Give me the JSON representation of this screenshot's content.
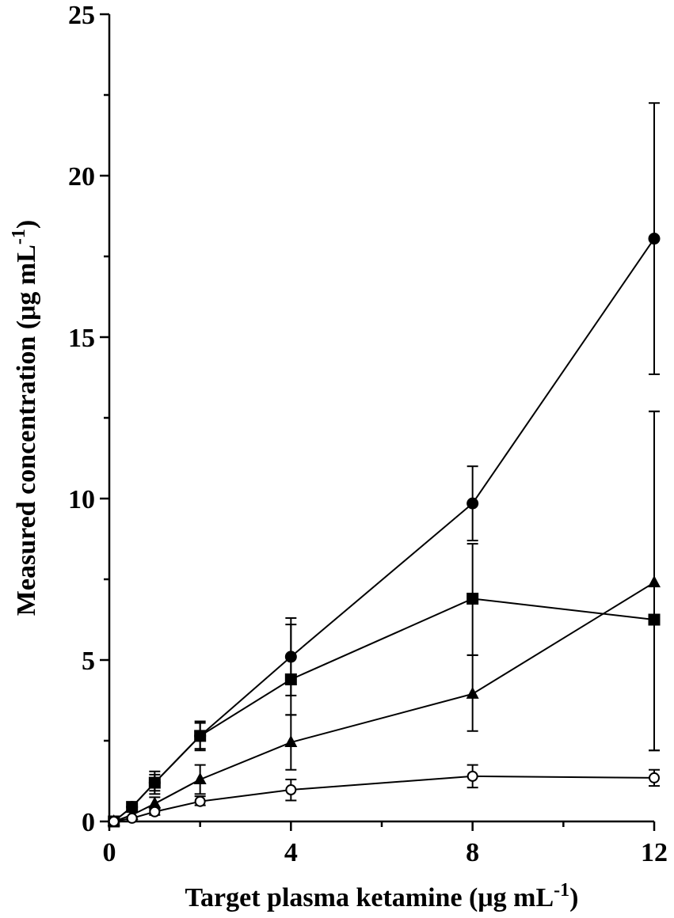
{
  "chart_data": {
    "type": "line",
    "xlabel": "Target plasma ketamine (μg mL",
    "xlabel_sup": "-1",
    "xlabel_end": ")",
    "ylabel": "Measured concentration (μg mL",
    "ylabel_sup": "-1",
    "ylabel_end": ")",
    "xlim": [
      0,
      12
    ],
    "ylim": [
      0,
      25
    ],
    "x_ticks": [
      0,
      4,
      8,
      12
    ],
    "x_tick_labels": [
      "0",
      "4",
      "8",
      "12"
    ],
    "x_minor_ticks": [
      2,
      6,
      10
    ],
    "y_ticks": [
      0,
      5,
      10,
      15,
      20,
      25
    ],
    "y_tick_labels": [
      "0",
      "5",
      "10",
      "15",
      "20",
      "25"
    ],
    "y_minor_ticks": [
      2.5,
      7.5,
      12.5,
      17.5,
      22.5
    ],
    "grid": false,
    "legend": "none",
    "x": [
      0.1,
      0.5,
      1,
      2,
      4,
      8,
      12
    ],
    "series": [
      {
        "marker": "filled-circle",
        "values": [
          0,
          0.45,
          1.2,
          2.65,
          5.1,
          9.85,
          18.05
        ],
        "err_hi": [
          null,
          0.6,
          1.55,
          3.1,
          6.3,
          11.0,
          22.25
        ],
        "err_lo": [
          null,
          0.3,
          0.85,
          2.2,
          3.9,
          8.7,
          13.85
        ]
      },
      {
        "marker": "filled-square",
        "values": [
          0,
          0.45,
          1.2,
          2.65,
          4.4,
          6.9,
          6.25
        ],
        "err_hi": [
          null,
          0.6,
          1.45,
          3.05,
          6.1,
          8.6,
          12.7
        ],
        "err_lo": [
          null,
          0.3,
          0.95,
          2.25,
          3.3,
          5.15,
          2.2
        ]
      },
      {
        "marker": "filled-triangle",
        "values": [
          0,
          0.2,
          0.55,
          1.3,
          2.45,
          3.95,
          7.4
        ],
        "err_hi": [
          null,
          0.3,
          0.75,
          1.75,
          3.3,
          5.15,
          12.7
        ],
        "err_lo": [
          null,
          0.1,
          0.35,
          0.85,
          1.6,
          2.8,
          2.2
        ]
      },
      {
        "marker": "open-circle",
        "values": [
          0,
          0.1,
          0.3,
          0.62,
          0.98,
          1.4,
          1.35
        ],
        "err_hi": [
          null,
          0.15,
          0.4,
          0.78,
          1.3,
          1.75,
          1.6
        ],
        "err_lo": [
          null,
          0.05,
          0.2,
          0.5,
          0.65,
          1.05,
          1.1
        ]
      }
    ]
  }
}
